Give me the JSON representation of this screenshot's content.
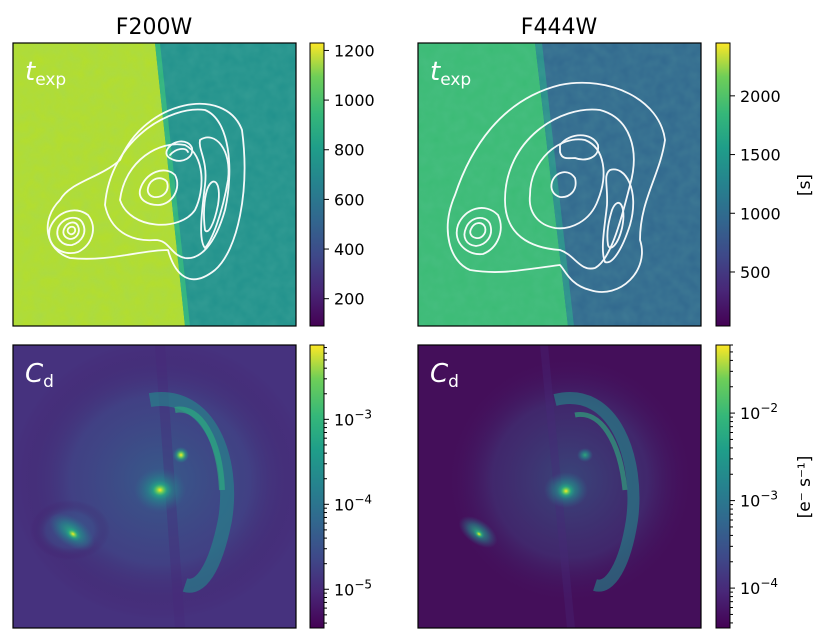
{
  "chart_data": [
    {
      "type": "heatmap",
      "title": "F200W",
      "panel_label": "t",
      "panel_label_sub": "exp",
      "colormap": "viridis",
      "scale": "linear",
      "colorbar_range": [
        90,
        1230
      ],
      "colorbar_ticks": [
        {
          "value": 200,
          "label": "200"
        },
        {
          "value": 400,
          "label": "400"
        },
        {
          "value": 600,
          "label": "600"
        },
        {
          "value": 800,
          "label": "800"
        },
        {
          "value": 1000,
          "label": "1000"
        },
        {
          "value": 1200,
          "label": "1200"
        }
      ],
      "unit_label": "",
      "contours": true
    },
    {
      "type": "heatmap",
      "title": "F444W",
      "panel_label": "t",
      "panel_label_sub": "exp",
      "colormap": "viridis",
      "scale": "linear",
      "colorbar_range": [
        40,
        2450
      ],
      "colorbar_ticks": [
        {
          "value": 500,
          "label": "500"
        },
        {
          "value": 1000,
          "label": "1000"
        },
        {
          "value": 1500,
          "label": "1500"
        },
        {
          "value": 2000,
          "label": "2000"
        }
      ],
      "unit_label": "[s]",
      "contours": true
    },
    {
      "type": "heatmap",
      "title": "",
      "panel_label": "C",
      "panel_label_sub": "d",
      "colormap": "viridis",
      "scale": "log",
      "colorbar_range": [
        3.5e-06,
        0.0075
      ],
      "colorbar_ticks": [
        {
          "value": 1e-05,
          "base": "10",
          "exp": "−5"
        },
        {
          "value": 0.0001,
          "base": "10",
          "exp": "−4"
        },
        {
          "value": 0.001,
          "base": "10",
          "exp": "−3"
        }
      ],
      "unit_label": "",
      "contours": false
    },
    {
      "type": "heatmap",
      "title": "",
      "panel_label": "C",
      "panel_label_sub": "d",
      "colormap": "viridis",
      "scale": "log",
      "colorbar_range": [
        3.5e-05,
        0.06
      ],
      "colorbar_ticks": [
        {
          "value": 0.0001,
          "base": "10",
          "exp": "−4"
        },
        {
          "value": 0.001,
          "base": "10",
          "exp": "−3"
        },
        {
          "value": 0.01,
          "base": "10",
          "exp": "−2"
        }
      ],
      "unit_label": "[e⁻ s⁻¹]",
      "contours": false
    }
  ]
}
